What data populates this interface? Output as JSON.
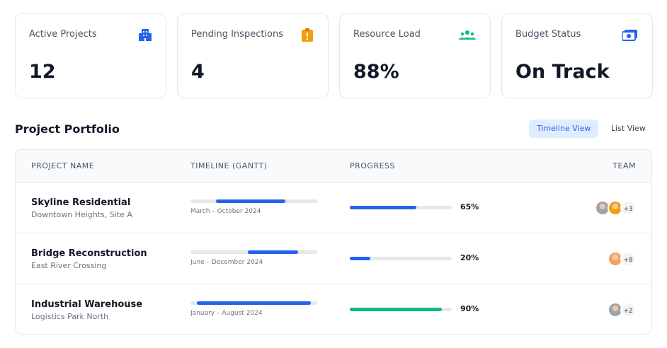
{
  "kpis": [
    {
      "label": "Active Projects",
      "value": "12"
    },
    {
      "label": "Pending Inspections",
      "value": "4"
    },
    {
      "label": "Resource Load",
      "value": "88%"
    },
    {
      "label": "Budget Status",
      "value": "On Track"
    }
  ],
  "portfolio": {
    "title": "Project Portfolio",
    "views": [
      "Timeline View",
      "List View"
    ],
    "columns": [
      "PROJECT NAME",
      "TIMELINE (GANTT)",
      "PROGRESS",
      "TEAM"
    ],
    "rows": [
      {
        "name": "Skyline Residential",
        "location": "Downtown Heights, Site A",
        "timeline": "March – October 2024",
        "gantt": {
          "start": 20,
          "end": 75
        },
        "progress": {
          "value": 65,
          "label": "65%"
        },
        "progress_color": "#2563eb",
        "team_extra": "+3"
      },
      {
        "name": "Bridge Reconstruction",
        "location": "East River Crossing",
        "timeline": "June – December 2024",
        "gantt": {
          "start": 45,
          "end": 85
        },
        "progress": {
          "value": 20,
          "label": "20%"
        },
        "progress_color": "#2563eb",
        "team_extra": "+8"
      },
      {
        "name": "Industrial Warehouse",
        "location": "Logistics Park North",
        "timeline": "January – August 2024",
        "gantt": {
          "start": 5,
          "end": 95
        },
        "progress": {
          "value": 90,
          "label": "90%"
        },
        "progress_color": "#10b981",
        "team_extra": "+2"
      }
    ]
  }
}
